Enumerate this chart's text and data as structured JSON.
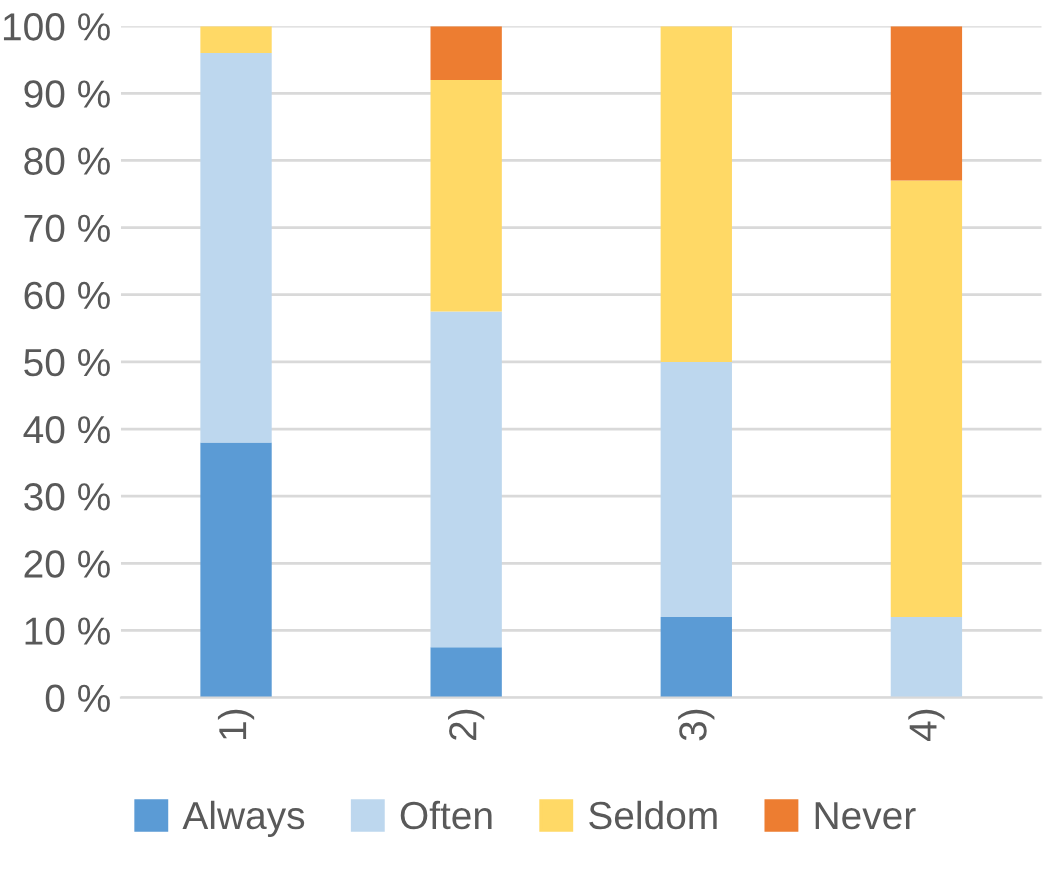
{
  "chart_data": {
    "type": "bar",
    "stacked": true,
    "categories": [
      "1)",
      "2)",
      "3)",
      "4)"
    ],
    "series": [
      {
        "name": "Always",
        "color": "#5b9bd5",
        "values": [
          38,
          7.5,
          12,
          0
        ]
      },
      {
        "name": "Often",
        "color": "#bdd7ee",
        "values": [
          58,
          50,
          38,
          12
        ]
      },
      {
        "name": "Seldom",
        "color": "#ffd966",
        "values": [
          4,
          34.5,
          50,
          65
        ]
      },
      {
        "name": "Never",
        "color": "#ed7d31",
        "values": [
          0,
          8,
          0,
          23
        ]
      }
    ],
    "ylim": [
      0,
      100
    ],
    "yticks": [
      {
        "value": 0,
        "label": "0 %"
      },
      {
        "value": 10,
        "label": "10 %"
      },
      {
        "value": 20,
        "label": "20 %"
      },
      {
        "value": 30,
        "label": "30 %"
      },
      {
        "value": 40,
        "label": "40 %"
      },
      {
        "value": 50,
        "label": "50 %"
      },
      {
        "value": 60,
        "label": "60 %"
      },
      {
        "value": 70,
        "label": "70 %"
      },
      {
        "value": 80,
        "label": "80 %"
      },
      {
        "value": 90,
        "label": "90 %"
      },
      {
        "value": 100,
        "label": "100 %"
      }
    ],
    "grid": "y",
    "legend": "bottom"
  }
}
